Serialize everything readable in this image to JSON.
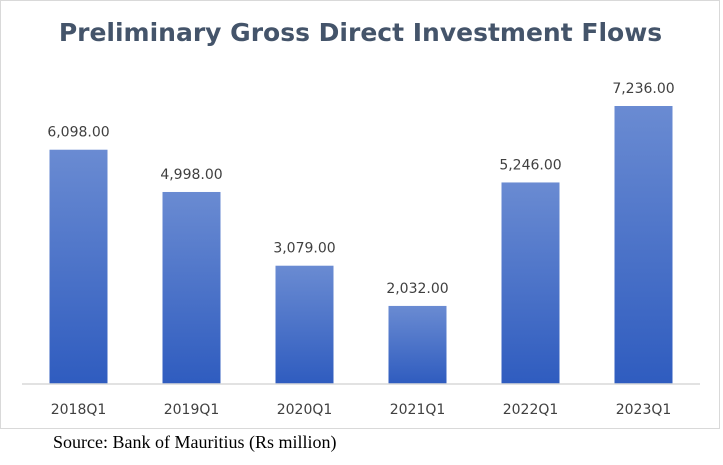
{
  "chart_data": {
    "type": "bar",
    "title": "Preliminary Gross Direct Investment Flows",
    "categories": [
      "2018Q1",
      "2019Q1",
      "2020Q1",
      "2021Q1",
      "2022Q1",
      "2023Q1"
    ],
    "values": [
      6098,
      4998,
      3079,
      2032,
      5246,
      7236
    ],
    "data_labels": [
      "6,098.00",
      "4,998.00",
      "3,079.00",
      "2,032.00",
      "5,246.00",
      "7,236.00"
    ],
    "xlabel": "",
    "ylabel": "",
    "ylim": [
      0,
      7236
    ],
    "grid": false,
    "legend": "none",
    "bar_color_top": "#6a8bd2",
    "bar_color_bottom": "#2f5cbf"
  },
  "source": "Source: Bank of Mauritius (Rs million)"
}
